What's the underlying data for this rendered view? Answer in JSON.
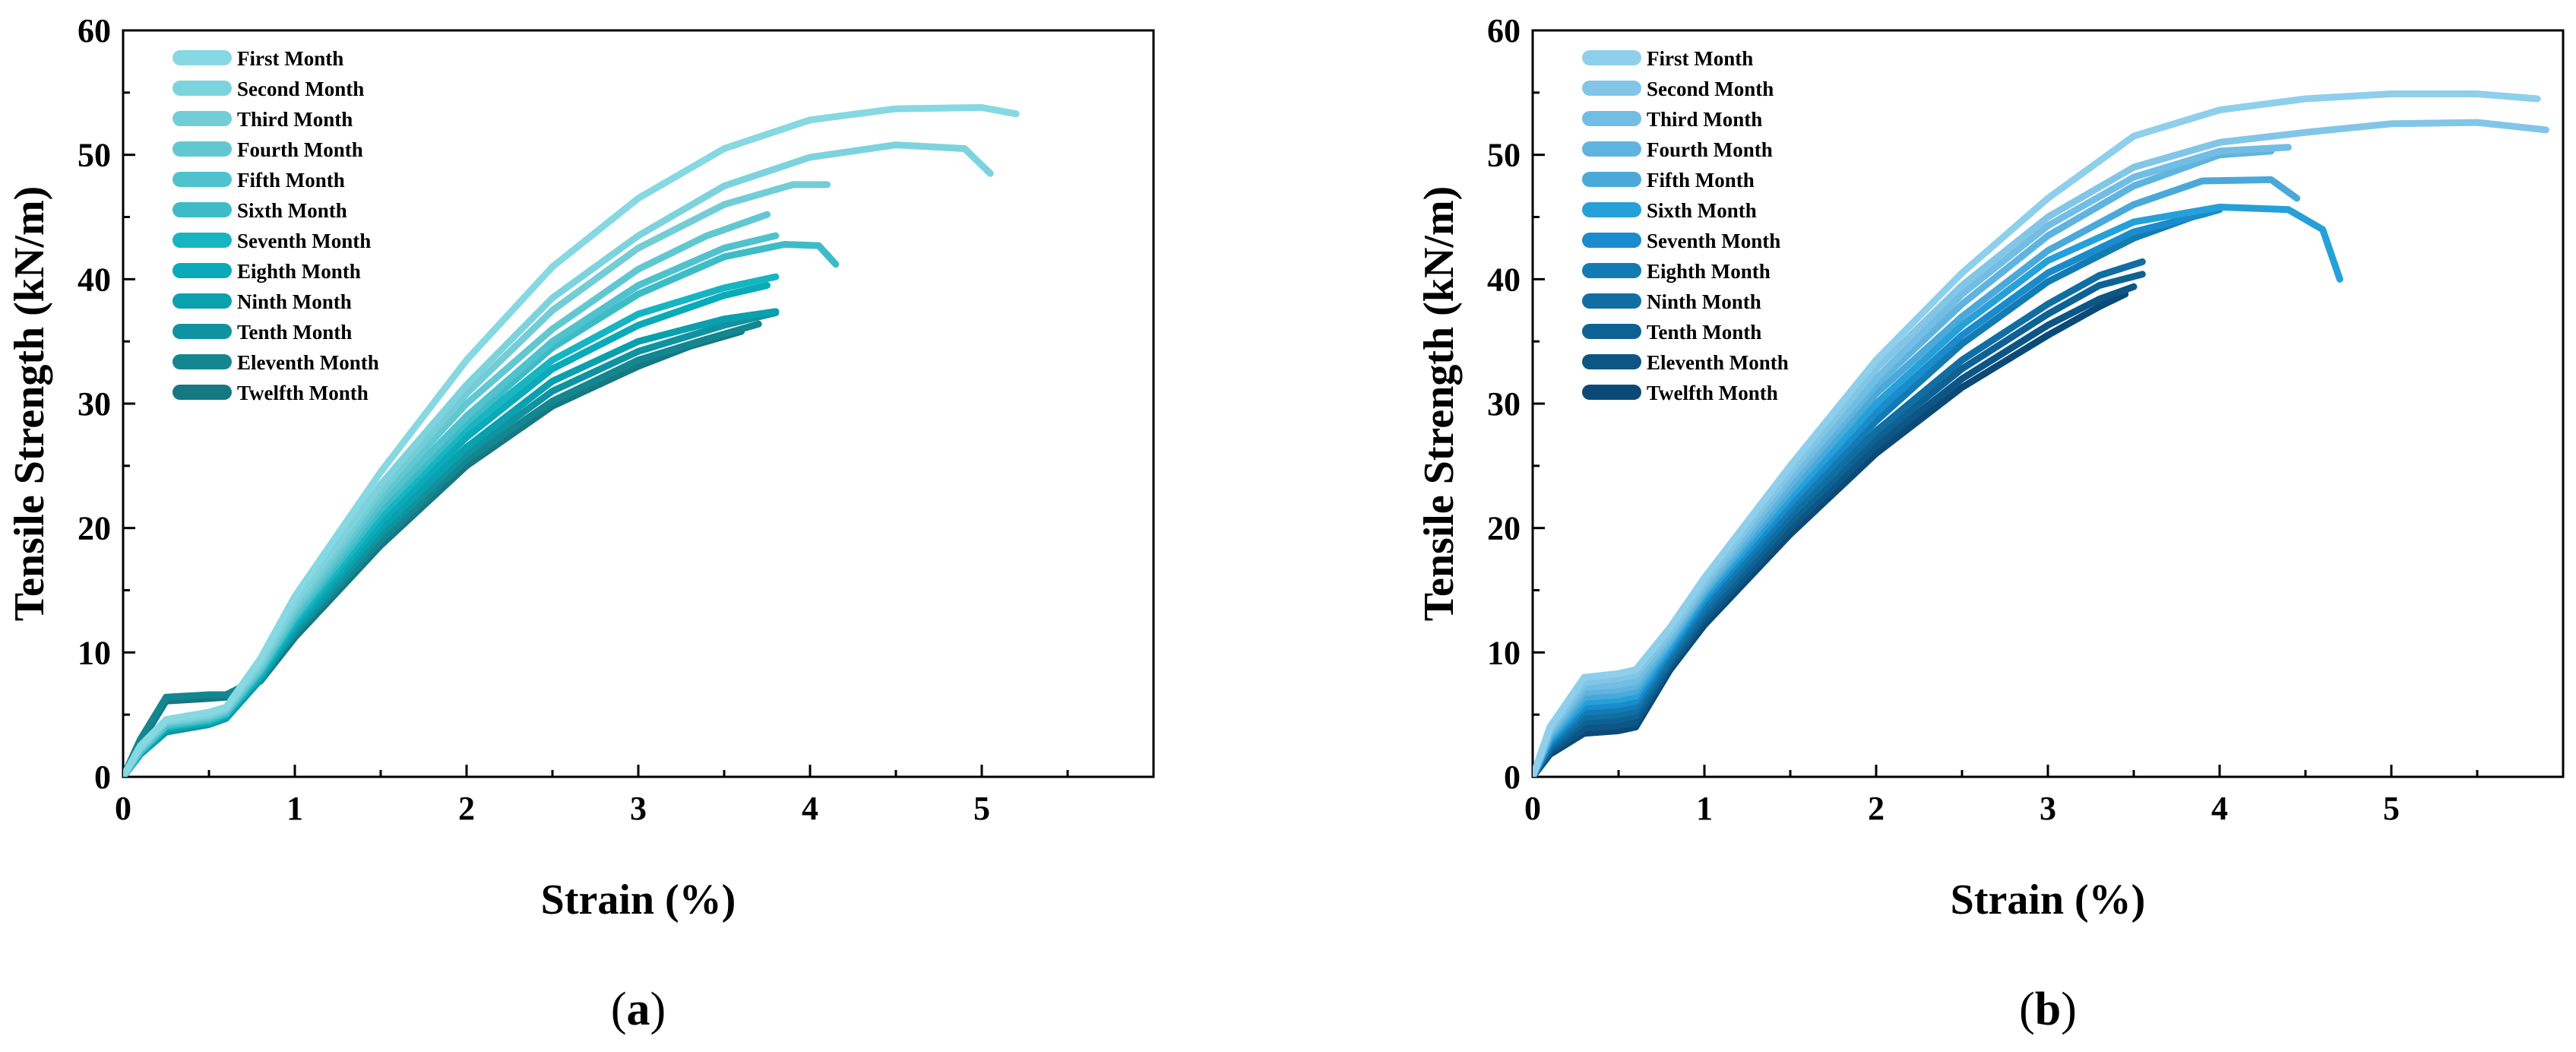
{
  "chart_data": [
    {
      "type": "line",
      "panel_label_prefix": "(",
      "panel_label_letter": "a",
      "panel_label_suffix": ")",
      "xlabel": "Strain (%)",
      "ylabel": "Tensile Strength (kN/m)",
      "xlim": [
        0,
        6
      ],
      "ylim": [
        0,
        60
      ],
      "x_ticks": [
        "0",
        "1",
        "2",
        "3",
        "4",
        "5"
      ],
      "y_ticks": [
        "0",
        "10",
        "20",
        "30",
        "40",
        "50",
        "60"
      ],
      "grid": false,
      "legend_position": "top-left",
      "series": [
        {
          "name": "First Month",
          "color": "#86d8e2",
          "x": [
            0,
            0.1,
            0.25,
            0.5,
            0.6,
            0.8,
            1.0,
            1.5,
            2.0,
            2.5,
            3.0,
            3.5,
            4.0,
            4.5,
            5.0,
            5.2
          ],
          "y": [
            0,
            2.5,
            4.6,
            5.2,
            5.6,
            9.5,
            14.5,
            24.5,
            33.5,
            41.0,
            46.5,
            50.5,
            52.8,
            53.7,
            53.8,
            53.3
          ]
        },
        {
          "name": "Second Month",
          "color": "#7dd3dd",
          "x": [
            0,
            0.1,
            0.25,
            0.5,
            0.6,
            0.8,
            1.0,
            1.5,
            2.0,
            2.5,
            3.0,
            3.5,
            4.0,
            4.5,
            4.9,
            5.05
          ],
          "y": [
            0,
            2.4,
            4.5,
            5.0,
            5.5,
            9.2,
            14.0,
            23.5,
            31.5,
            38.5,
            43.5,
            47.5,
            49.8,
            50.8,
            50.5,
            48.5
          ]
        },
        {
          "name": "Third Month",
          "color": "#72cdd6",
          "x": [
            0,
            0.1,
            0.25,
            0.5,
            0.6,
            0.8,
            1.0,
            1.5,
            2.0,
            2.5,
            3.0,
            3.5,
            3.9,
            4.1
          ],
          "y": [
            0,
            2.3,
            4.4,
            4.9,
            5.4,
            9.0,
            13.6,
            23.0,
            30.8,
            37.5,
            42.5,
            46.0,
            47.6,
            47.6
          ]
        },
        {
          "name": "Fourth Month",
          "color": "#61c8d2",
          "x": [
            0,
            0.1,
            0.25,
            0.5,
            0.6,
            0.8,
            1.0,
            1.5,
            2.0,
            2.5,
            3.0,
            3.4,
            3.75
          ],
          "y": [
            0,
            2.2,
            4.3,
            4.8,
            5.3,
            8.8,
            13.3,
            22.5,
            30.0,
            36.0,
            40.8,
            43.5,
            45.2
          ]
        },
        {
          "name": "Fifth Month",
          "color": "#4fc2cd",
          "x": [
            0,
            0.1,
            0.25,
            0.5,
            0.6,
            0.8,
            1.0,
            1.5,
            2.0,
            2.5,
            3.0,
            3.5,
            3.8
          ],
          "y": [
            0,
            2.1,
            4.2,
            4.7,
            5.2,
            8.6,
            13.0,
            22.0,
            29.0,
            35.0,
            39.5,
            42.5,
            43.5
          ]
        },
        {
          "name": "Sixth Month",
          "color": "#3dbcc8",
          "x": [
            0,
            0.1,
            0.25,
            0.5,
            0.6,
            0.8,
            1.0,
            1.5,
            2.0,
            2.5,
            3.0,
            3.5,
            3.85,
            4.05,
            4.15
          ],
          "y": [
            0,
            2.0,
            4.1,
            4.6,
            5.1,
            8.5,
            12.8,
            21.5,
            28.5,
            34.5,
            38.8,
            41.8,
            42.8,
            42.7,
            41.2
          ]
        },
        {
          "name": "Seventh Month",
          "color": "#17b5c1",
          "x": [
            0,
            0.1,
            0.25,
            0.5,
            0.6,
            0.8,
            1.0,
            1.5,
            2.0,
            2.5,
            3.0,
            3.5,
            3.8
          ],
          "y": [
            0,
            2.0,
            4.0,
            4.5,
            5.0,
            8.3,
            12.5,
            21.0,
            28.0,
            33.5,
            37.2,
            39.3,
            40.2
          ]
        },
        {
          "name": "Eighth Month",
          "color": "#0aaab8",
          "x": [
            0,
            0.1,
            0.25,
            0.5,
            0.6,
            0.8,
            1.0,
            1.5,
            2.0,
            2.5,
            3.0,
            3.5,
            3.75
          ],
          "y": [
            0,
            1.9,
            3.9,
            4.4,
            4.9,
            8.1,
            12.2,
            20.5,
            27.3,
            32.8,
            36.3,
            38.7,
            39.5
          ]
        },
        {
          "name": "Ninth Month",
          "color": "#0aa0ae",
          "x": [
            0,
            0.1,
            0.25,
            0.5,
            0.6,
            0.8,
            1.0,
            1.5,
            2.0,
            2.5,
            3.0,
            3.5,
            3.8
          ],
          "y": [
            0,
            1.8,
            3.8,
            4.3,
            4.8,
            8.0,
            12.0,
            20.0,
            26.5,
            31.8,
            35.0,
            36.8,
            37.4
          ]
        },
        {
          "name": "Tenth Month",
          "color": "#1093a0",
          "x": [
            0,
            0.1,
            0.25,
            0.5,
            0.6,
            0.8,
            1.0,
            1.5,
            2.0,
            2.5,
            3.0,
            3.5,
            3.8
          ],
          "y": [
            0,
            1.8,
            3.6,
            4.2,
            4.7,
            7.8,
            11.7,
            19.5,
            26.0,
            31.0,
            34.2,
            36.3,
            37.3
          ]
        },
        {
          "name": "Eleventh Month",
          "color": "#138690",
          "x": [
            0,
            0.1,
            0.25,
            0.5,
            0.6,
            0.8,
            1.0,
            1.5,
            2.0,
            2.5,
            3.0,
            3.4,
            3.7
          ],
          "y": [
            0,
            3.0,
            6.4,
            6.6,
            6.6,
            8.0,
            11.5,
            19.0,
            25.5,
            30.2,
            33.5,
            35.2,
            36.4
          ]
        },
        {
          "name": "Twelfth Month",
          "color": "#157883",
          "x": [
            0,
            0.1,
            0.25,
            0.5,
            0.6,
            0.8,
            1.0,
            1.5,
            2.0,
            2.5,
            3.0,
            3.3,
            3.6
          ],
          "y": [
            0,
            2.7,
            6.1,
            6.3,
            6.4,
            7.7,
            11.2,
            18.6,
            25.0,
            29.8,
            33.0,
            34.6,
            35.8
          ]
        }
      ]
    },
    {
      "type": "line",
      "panel_label_prefix": "(",
      "panel_label_letter": "b",
      "panel_label_suffix": ")",
      "xlabel": "Strain (%)",
      "ylabel": "Tensile Strength (kN/m)",
      "xlim": [
        0,
        6
      ],
      "ylim": [
        0,
        60
      ],
      "x_ticks": [
        "0",
        "1",
        "2",
        "3",
        "4",
        "5"
      ],
      "y_ticks": [
        "0",
        "10",
        "20",
        "30",
        "40",
        "50",
        "60"
      ],
      "grid": false,
      "legend_position": "top-left",
      "series": [
        {
          "name": "First Month",
          "color": "#8ecfec",
          "x": [
            0,
            0.1,
            0.3,
            0.5,
            0.6,
            0.8,
            1.0,
            1.5,
            2.0,
            2.5,
            3.0,
            3.5,
            4.0,
            4.5,
            5.0,
            5.5,
            5.85
          ],
          "y": [
            0,
            4.0,
            8.0,
            8.3,
            8.6,
            12.0,
            16.0,
            25.0,
            33.5,
            40.5,
            46.5,
            51.5,
            53.6,
            54.5,
            54.9,
            54.9,
            54.5
          ]
        },
        {
          "name": "Second Month",
          "color": "#82c6e7",
          "x": [
            0,
            0.1,
            0.3,
            0.5,
            0.6,
            0.8,
            1.0,
            1.5,
            2.0,
            2.5,
            3.0,
            3.5,
            4.0,
            4.5,
            5.0,
            5.5,
            5.9
          ],
          "y": [
            0,
            3.8,
            7.6,
            7.9,
            8.2,
            11.6,
            15.6,
            24.5,
            32.8,
            39.5,
            45.0,
            49.0,
            51.0,
            51.8,
            52.5,
            52.6,
            52.0
          ]
        },
        {
          "name": "Third Month",
          "color": "#72bde3",
          "x": [
            0,
            0.1,
            0.3,
            0.5,
            0.6,
            0.8,
            1.0,
            1.5,
            2.0,
            2.5,
            3.0,
            3.5,
            4.0,
            4.4
          ],
          "y": [
            0,
            3.6,
            7.2,
            7.4,
            7.7,
            11.3,
            15.3,
            24.0,
            32.0,
            38.8,
            44.3,
            48.2,
            50.3,
            50.6
          ]
        },
        {
          "name": "Fourth Month",
          "color": "#5fb4df",
          "x": [
            0,
            0.1,
            0.3,
            0.5,
            0.6,
            0.8,
            1.0,
            1.5,
            2.0,
            2.5,
            3.0,
            3.5,
            4.0,
            4.3
          ],
          "y": [
            0,
            3.4,
            6.8,
            7.0,
            7.3,
            11.0,
            15.0,
            23.5,
            31.5,
            38.0,
            43.5,
            47.5,
            50.0,
            50.3
          ]
        },
        {
          "name": "Fifth Month",
          "color": "#4aa9d9",
          "x": [
            0,
            0.1,
            0.3,
            0.5,
            0.6,
            0.8,
            1.0,
            1.5,
            2.0,
            2.5,
            3.0,
            3.5,
            3.9,
            4.3,
            4.45
          ],
          "y": [
            0,
            3.2,
            6.4,
            6.6,
            6.9,
            10.8,
            14.8,
            23.0,
            30.8,
            37.0,
            42.3,
            46.0,
            47.9,
            48.0,
            46.5
          ]
        },
        {
          "name": "Sixth Month",
          "color": "#26a0d8",
          "x": [
            0,
            0.1,
            0.3,
            0.5,
            0.6,
            0.8,
            1.0,
            1.5,
            2.0,
            2.5,
            3.0,
            3.5,
            4.0,
            4.4,
            4.6,
            4.7
          ],
          "y": [
            0,
            3.0,
            6.0,
            6.2,
            6.5,
            10.5,
            14.5,
            22.5,
            30.0,
            36.3,
            41.5,
            44.6,
            45.8,
            45.6,
            44.0,
            40.0
          ]
        },
        {
          "name": "Seventh Month",
          "color": "#1a8bcc",
          "x": [
            0,
            0.1,
            0.3,
            0.5,
            0.6,
            0.8,
            1.0,
            1.5,
            2.0,
            2.5,
            3.0,
            3.5,
            3.9,
            4.0
          ],
          "y": [
            0,
            2.8,
            5.6,
            5.8,
            6.1,
            10.2,
            14.2,
            22.0,
            29.3,
            35.5,
            40.5,
            43.8,
            45.2,
            45.6
          ]
        },
        {
          "name": "Eighth Month",
          "color": "#137bb4",
          "x": [
            0,
            0.1,
            0.3,
            0.5,
            0.6,
            0.8,
            1.0,
            1.5,
            2.0,
            2.5,
            3.0,
            3.5,
            3.9
          ],
          "y": [
            0,
            2.6,
            5.2,
            5.4,
            5.7,
            9.9,
            13.8,
            21.5,
            28.6,
            34.8,
            39.8,
            43.3,
            45.3
          ]
        },
        {
          "name": "Ninth Month",
          "color": "#106ea3",
          "x": [
            0,
            0.1,
            0.3,
            0.5,
            0.6,
            0.8,
            1.0,
            1.5,
            2.0,
            2.5,
            3.0,
            3.3,
            3.55
          ],
          "y": [
            0,
            2.4,
            4.8,
            5.0,
            5.3,
            9.5,
            13.4,
            21.0,
            27.8,
            33.5,
            38.0,
            40.3,
            41.4
          ]
        },
        {
          "name": "Tenth Month",
          "color": "#0e6293",
          "x": [
            0,
            0.1,
            0.3,
            0.5,
            0.6,
            0.8,
            1.0,
            1.5,
            2.0,
            2.5,
            3.0,
            3.3,
            3.55
          ],
          "y": [
            0,
            2.2,
            4.4,
            4.6,
            4.9,
            9.2,
            13.0,
            20.5,
            27.2,
            32.8,
            37.2,
            39.5,
            40.4
          ]
        },
        {
          "name": "Eleventh Month",
          "color": "#0c5585",
          "x": [
            0,
            0.1,
            0.3,
            0.5,
            0.6,
            0.8,
            1.0,
            1.5,
            2.0,
            2.5,
            3.0,
            3.3,
            3.5
          ],
          "y": [
            0,
            2.0,
            3.9,
            4.1,
            4.4,
            8.9,
            12.6,
            20.0,
            26.6,
            32.0,
            36.3,
            38.4,
            39.4
          ]
        },
        {
          "name": "Twelfth Month",
          "color": "#0b4a77",
          "x": [
            0,
            0.1,
            0.3,
            0.5,
            0.6,
            0.8,
            1.0,
            1.5,
            2.0,
            2.5,
            3.0,
            3.3,
            3.45
          ],
          "y": [
            0,
            1.8,
            3.5,
            3.7,
            4.0,
            8.6,
            12.2,
            19.5,
            26.0,
            31.3,
            35.5,
            37.8,
            38.8
          ]
        }
      ]
    }
  ]
}
